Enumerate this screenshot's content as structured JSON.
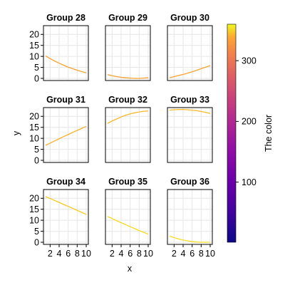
{
  "chart_data": {
    "type": "line",
    "xlabel": "x",
    "ylabel": "y",
    "xlim": [
      1,
      10
    ],
    "ylim": [
      0,
      23
    ],
    "xticks": [
      2,
      4,
      6,
      8,
      10
    ],
    "yticks": [
      0,
      5,
      10,
      15,
      20
    ],
    "grid": true,
    "colorbar": {
      "label": "The color",
      "range": [
        1,
        360
      ],
      "ticks": [
        100,
        200,
        300
      ],
      "colormap": "plasma"
    },
    "panels": [
      {
        "title": "Group 28",
        "x": [
          1,
          2,
          3,
          4,
          5,
          6,
          7,
          8,
          9,
          10
        ],
        "y": [
          10.2,
          9.0,
          7.9,
          6.9,
          6.0,
          5.1,
          4.4,
          3.7,
          3.1,
          2.5
        ],
        "color": "#f9a232"
      },
      {
        "title": "Group 29",
        "x": [
          1,
          2,
          3,
          4,
          5,
          6,
          7,
          8,
          9,
          10
        ],
        "y": [
          1.7,
          1.2,
          0.8,
          0.5,
          0.3,
          0.1,
          0.0,
          0.0,
          0.1,
          0.3
        ],
        "color": "#f89f35"
      },
      {
        "title": "Group 30",
        "x": [
          1,
          2,
          3,
          4,
          5,
          6,
          7,
          8,
          9,
          10
        ],
        "y": [
          0.3,
          0.8,
          1.3,
          1.8,
          2.4,
          3.0,
          3.7,
          4.4,
          5.1,
          5.8
        ],
        "color": "#f9a332"
      },
      {
        "title": "Group 31",
        "x": [
          1,
          2,
          3,
          4,
          5,
          6,
          7,
          8,
          9,
          10
        ],
        "y": [
          6.8,
          7.8,
          8.8,
          9.8,
          10.8,
          11.7,
          12.7,
          13.6,
          14.5,
          15.4
        ],
        "color": "#fbae2b"
      },
      {
        "title": "Group 32",
        "x": [
          1,
          2,
          3,
          4,
          5,
          6,
          7,
          8,
          9,
          10
        ],
        "y": [
          16.8,
          17.9,
          18.8,
          19.7,
          20.5,
          21.1,
          21.6,
          22.0,
          22.3,
          22.4
        ],
        "color": "#fcb52a"
      },
      {
        "title": "Group 33",
        "x": [
          1,
          2,
          3,
          4,
          5,
          6,
          7,
          8,
          9,
          10
        ],
        "y": [
          22.8,
          23.0,
          23.1,
          23.1,
          23.0,
          22.8,
          22.6,
          22.2,
          21.8,
          21.3
        ],
        "color": "#fdb82a"
      },
      {
        "title": "Group 34",
        "x": [
          1,
          2,
          3,
          4,
          5,
          6,
          7,
          8,
          9,
          10
        ],
        "y": [
          20.7,
          19.9,
          19.0,
          18.1,
          17.2,
          16.3,
          15.4,
          14.5,
          13.6,
          12.6
        ],
        "color": "#fcc91f"
      },
      {
        "title": "Group 35",
        "x": [
          1,
          2,
          3,
          4,
          5,
          6,
          7,
          8,
          9,
          10
        ],
        "y": [
          11.7,
          10.8,
          9.8,
          8.9,
          8.0,
          7.1,
          6.2,
          5.3,
          4.5,
          3.7
        ],
        "color": "#fcd71c"
      },
      {
        "title": "Group 36",
        "x": [
          1,
          2,
          3,
          4,
          5,
          6,
          7,
          8,
          9,
          10
        ],
        "y": [
          2.8,
          2.1,
          1.5,
          1.0,
          0.6,
          0.3,
          0.1,
          0.0,
          0.0,
          0.0
        ],
        "color": "#fbd924"
      }
    ]
  }
}
